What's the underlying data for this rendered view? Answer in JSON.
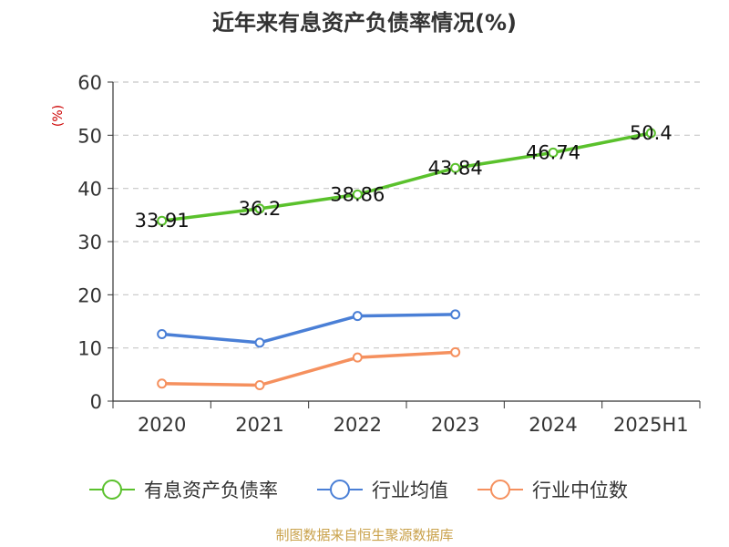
{
  "chart_data": {
    "type": "line",
    "title": "近年来有息资产负债率情况(%)",
    "ylabel": "(%)",
    "xlabel": "",
    "categories": [
      "2020",
      "2021",
      "2022",
      "2023",
      "2024",
      "2025H1"
    ],
    "ylim": [
      0,
      60
    ],
    "yticks": [
      "0",
      "10",
      "20",
      "30",
      "40",
      "50",
      "60"
    ],
    "grid": true,
    "legend_position": "bottom",
    "series": [
      {
        "name": "有息资产负债率",
        "color": "#5ac12c",
        "values": [
          33.91,
          36.2,
          38.86,
          43.84,
          46.74,
          50.4
        ],
        "labels": [
          "33.91",
          "36.2",
          "38.86",
          "43.84",
          "46.74",
          "50.4"
        ]
      },
      {
        "name": "行业均值",
        "color": "#4a7fd6",
        "values": [
          12.6,
          11.0,
          16.0,
          16.3,
          null,
          null
        ]
      },
      {
        "name": "行业中位数",
        "color": "#f5905e",
        "values": [
          3.3,
          3.0,
          8.2,
          9.2,
          null,
          null
        ]
      }
    ]
  },
  "source_note": "制图数据来自恒生聚源数据库"
}
